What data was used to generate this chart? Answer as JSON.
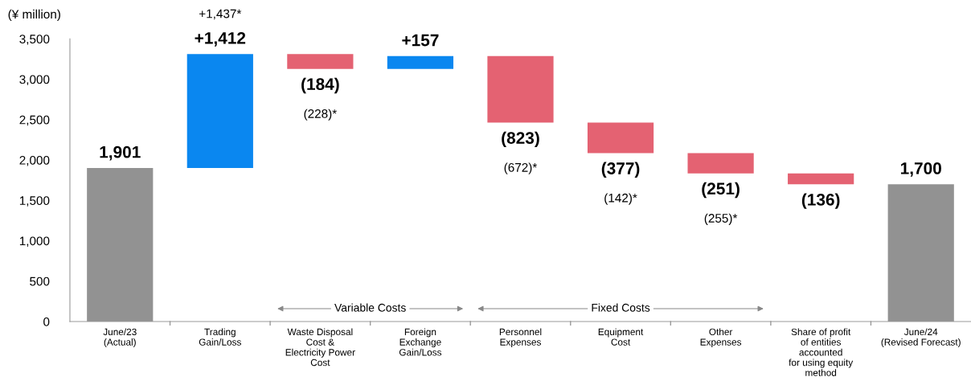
{
  "chart_data": {
    "type": "bar",
    "ylabel": "(¥ million)",
    "categories": [
      "June/23\n(Actual)",
      "Trading\nGain/Loss",
      "Waste Disposal\nCost &\nElectricity Power\nCost",
      "Foreign\nExchange\nGain/Loss",
      "Personnel\nExpenses",
      "Equipment\nCost",
      "Other\nExpenses",
      "Share of profit\nof entities\naccounted\nfor using equity\nmethod",
      "June/24\n(Revised Forecast)"
    ],
    "base": [
      0,
      1901,
      3313,
      3129,
      3286,
      2463,
      2086,
      1835,
      0
    ],
    "values": [
      1901,
      1412,
      -184,
      157,
      -823,
      -377,
      -251,
      -136,
      1700
    ],
    "colors": [
      "#929292",
      "#0a87f0",
      "#e46272",
      "#0a87f0",
      "#e46272",
      "#e46272",
      "#e46272",
      "#e46272",
      "#929292"
    ],
    "value_labels": [
      "1,901",
      "+1,412",
      "(184)",
      "+157",
      "(823)",
      "(377)",
      "(251)",
      "(136)",
      "1,700"
    ],
    "ylim": [
      0,
      3500
    ],
    "yticks": [
      0,
      500,
      {
        "value": 1000,
        "label": "1,000"
      },
      {
        "value": 1500,
        "label": "1,500"
      },
      {
        "value": 2000,
        "label": "2,000"
      },
      {
        "value": 2500,
        "label": "2,500"
      },
      {
        "value": 3000,
        "label": "3,000"
      },
      {
        "value": 3500,
        "label": "3,500"
      }
    ],
    "grid": false,
    "annotations": [
      "+1,437*",
      "(228)*",
      "(672)*",
      "(142)*",
      "(255)*",
      "Variable Costs",
      "Fixed Costs"
    ]
  }
}
